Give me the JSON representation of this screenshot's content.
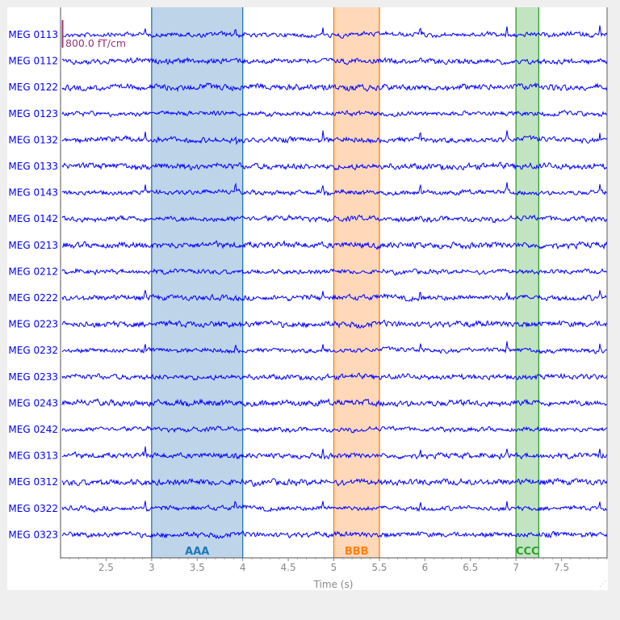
{
  "chart_data": {
    "type": "line",
    "xlabel": "Time (s)",
    "xlim": [
      2.0,
      8.0
    ],
    "x_ticks": [
      "2.5",
      "3",
      "3.5",
      "4",
      "4.5",
      "5",
      "5.5",
      "6",
      "6.5",
      "7",
      "7.5"
    ],
    "x_tick_values": [
      2.5,
      3,
      3.5,
      4,
      4.5,
      5,
      5.5,
      6,
      6.5,
      7,
      7.5
    ],
    "trace_color": "#0000ff",
    "channels": [
      "MEG 0113",
      "MEG 0112",
      "MEG 0122",
      "MEG 0123",
      "MEG 0132",
      "MEG 0133",
      "MEG 0143",
      "MEG 0142",
      "MEG 0213",
      "MEG 0212",
      "MEG 0222",
      "MEG 0223",
      "MEG 0232",
      "MEG 0233",
      "MEG 0243",
      "MEG 0242",
      "MEG 0313",
      "MEG 0312",
      "MEG 0322",
      "MEG 0323"
    ],
    "annotations": [
      {
        "label": "AAA",
        "onset": 3.0,
        "offset": 4.0,
        "color": "#1f77b4",
        "fill": "#bed4e9"
      },
      {
        "label": "BBB",
        "onset": 5.0,
        "offset": 5.5,
        "color": "#ff7f0e",
        "fill": "#ffd8b9"
      },
      {
        "label": "CCC",
        "onset": 7.0,
        "offset": 7.25,
        "color": "#2ca02c",
        "fill": "#c2e4c2"
      }
    ],
    "scale_bar": {
      "label": "800.0 fT/cm",
      "color": "#993377"
    },
    "spikes_s": [
      2.93,
      3.92,
      4.88,
      5.95,
      6.9,
      7.92
    ]
  }
}
